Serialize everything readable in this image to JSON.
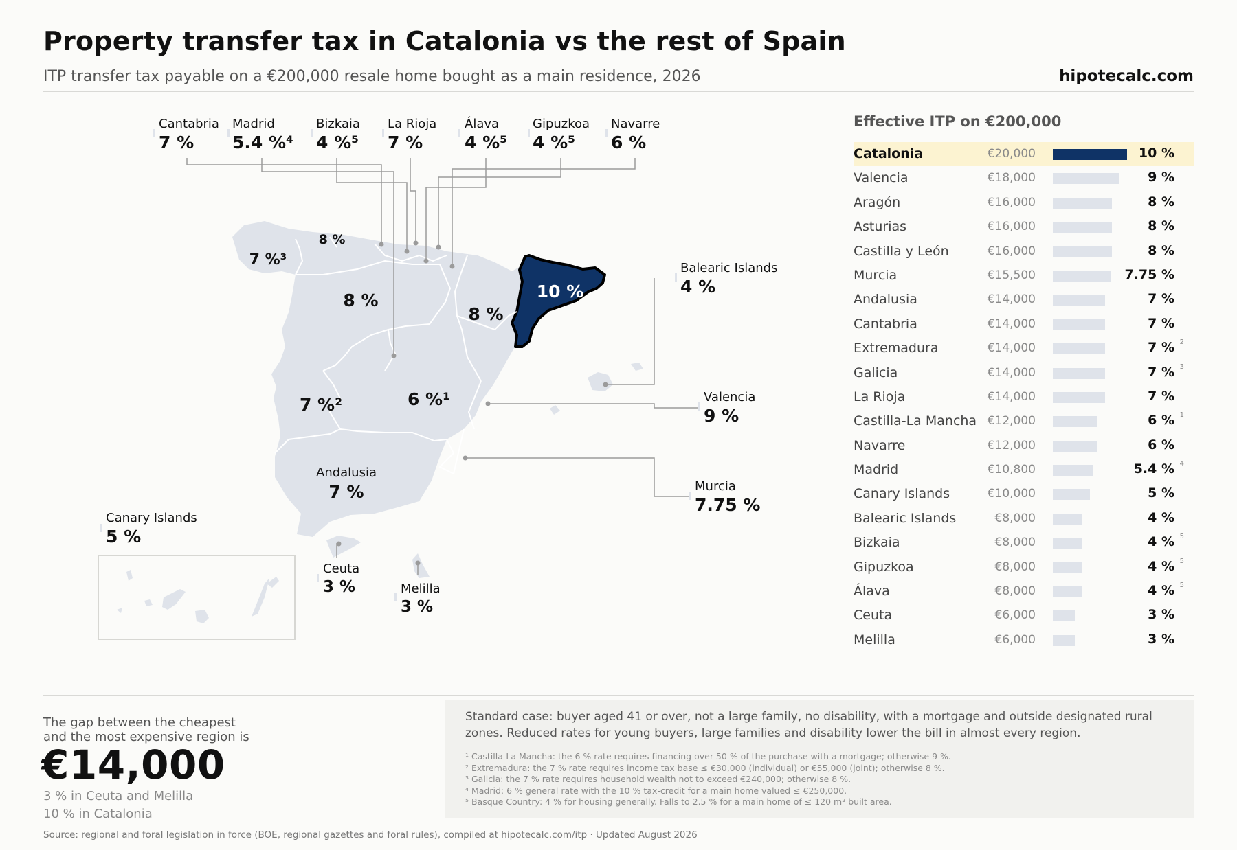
{
  "header": {
    "title": "Property transfer tax in Catalonia vs the rest of Spain",
    "subtitle": "ITP transfer tax payable on a €200,000 resale home bought as a main residence, 2026",
    "brand": "hipotecalc.com"
  },
  "colors": {
    "highlight": "#0f3366",
    "land": "#dfe3ea",
    "row_highlight": "#fcf3d1",
    "bar_default": "#dfe3ea"
  },
  "map": {
    "top_callouts": [
      {
        "name": "Cantabria",
        "rate": "7 %"
      },
      {
        "name": "Madrid",
        "rate": "5.4 %⁴"
      },
      {
        "name": "Bizkaia",
        "rate": "4 %⁵"
      },
      {
        "name": "La Rioja",
        "rate": "7 %"
      },
      {
        "name": "Álava",
        "rate": "4 %⁵"
      },
      {
        "name": "Gipuzkoa",
        "rate": "4 %⁵"
      },
      {
        "name": "Navarre",
        "rate": "6 %"
      }
    ],
    "side_callouts": {
      "balearic": {
        "name": "Balearic Islands",
        "rate": "4 %"
      },
      "valencia": {
        "name": "Valencia",
        "rate": "9 %"
      },
      "murcia": {
        "name": "Murcia",
        "rate": "7.75 %"
      },
      "andalusia": {
        "name": "Andalusia",
        "rate": "7 %"
      },
      "canary": {
        "name": "Canary Islands",
        "rate": "5 %"
      },
      "ceuta": {
        "name": "Ceuta",
        "rate": "3 %"
      },
      "melilla": {
        "name": "Melilla",
        "rate": "3 %"
      }
    },
    "inline_labels": {
      "galicia": "7 %³",
      "asturias": "8 %",
      "castilla_leon": "8 %",
      "aragon": "8 %",
      "catalonia": "10 %",
      "extremadura": "7 %²",
      "castilla_la_mancha": "6 %¹"
    }
  },
  "panel": {
    "title": "Effective ITP on €200,000",
    "rows": [
      {
        "name": "Catalonia",
        "amount": "€20,000",
        "rate": "10 %",
        "value": 10,
        "note": "",
        "highlight": true
      },
      {
        "name": "Valencia",
        "amount": "€18,000",
        "rate": "9 %",
        "value": 9,
        "note": ""
      },
      {
        "name": "Aragón",
        "amount": "€16,000",
        "rate": "8 %",
        "value": 8,
        "note": ""
      },
      {
        "name": "Asturias",
        "amount": "€16,000",
        "rate": "8 %",
        "value": 8,
        "note": ""
      },
      {
        "name": "Castilla y León",
        "amount": "€16,000",
        "rate": "8 %",
        "value": 8,
        "note": ""
      },
      {
        "name": "Murcia",
        "amount": "€15,500",
        "rate": "7.75 %",
        "value": 7.75,
        "note": ""
      },
      {
        "name": "Andalusia",
        "amount": "€14,000",
        "rate": "7 %",
        "value": 7,
        "note": ""
      },
      {
        "name": "Cantabria",
        "amount": "€14,000",
        "rate": "7 %",
        "value": 7,
        "note": ""
      },
      {
        "name": "Extremadura",
        "amount": "€14,000",
        "rate": "7 %",
        "value": 7,
        "note": "2"
      },
      {
        "name": "Galicia",
        "amount": "€14,000",
        "rate": "7 %",
        "value": 7,
        "note": "3"
      },
      {
        "name": "La Rioja",
        "amount": "€14,000",
        "rate": "7 %",
        "value": 7,
        "note": ""
      },
      {
        "name": "Castilla-La Mancha",
        "amount": "€12,000",
        "rate": "6 %",
        "value": 6,
        "note": "1"
      },
      {
        "name": "Navarre",
        "amount": "€12,000",
        "rate": "6 %",
        "value": 6,
        "note": ""
      },
      {
        "name": "Madrid",
        "amount": "€10,800",
        "rate": "5.4 %",
        "value": 5.4,
        "note": "4"
      },
      {
        "name": "Canary Islands",
        "amount": "€10,000",
        "rate": "5 %",
        "value": 5,
        "note": ""
      },
      {
        "name": "Balearic Islands",
        "amount": "€8,000",
        "rate": "4 %",
        "value": 4,
        "note": ""
      },
      {
        "name": "Bizkaia",
        "amount": "€8,000",
        "rate": "4 %",
        "value": 4,
        "note": "5"
      },
      {
        "name": "Gipuzkoa",
        "amount": "€8,000",
        "rate": "4 %",
        "value": 4,
        "note": "5"
      },
      {
        "name": "Álava",
        "amount": "€8,000",
        "rate": "4 %",
        "value": 4,
        "note": "5"
      },
      {
        "name": "Ceuta",
        "amount": "€6,000",
        "rate": "3 %",
        "value": 3,
        "note": ""
      },
      {
        "name": "Melilla",
        "amount": "€6,000",
        "rate": "3 %",
        "value": 3,
        "note": ""
      }
    ]
  },
  "gap": {
    "label_line1": "The gap between the cheapest",
    "label_line2": "and the most expensive region is",
    "value": "€14,000",
    "low": "3 % in Ceuta and Melilla",
    "high": "10 % in Catalonia"
  },
  "notes": {
    "standard": "Standard case: buyer aged 41 or over, not a large family, no disability, with a mortgage and outside designated rural zones. Reduced rates for young buyers, large families and disability lower the bill in almost every region.",
    "footnotes": [
      "¹ Castilla-La Mancha: the 6 % rate requires financing over 50 % of the purchase with a mortgage; otherwise 9 %.",
      "² Extremadura: the 7 % rate requires income tax base ≤ €30,000 (individual) or €55,000 (joint); otherwise 8 %.",
      "³ Galicia: the 7 % rate requires household wealth not to exceed €240,000; otherwise 8 %.",
      "⁴ Madrid: 6 % general rate with the 10 % tax-credit for a main home valued ≤ €250,000.",
      "⁵ Basque Country: 4 % for housing generally. Falls to 2.5 % for a main home of ≤ 120 m² built area."
    ]
  },
  "source": "Source: regional and foral legislation in force (BOE, regional gazettes and foral rules), compiled at hipotecalc.com/itp · Updated August 2026"
}
